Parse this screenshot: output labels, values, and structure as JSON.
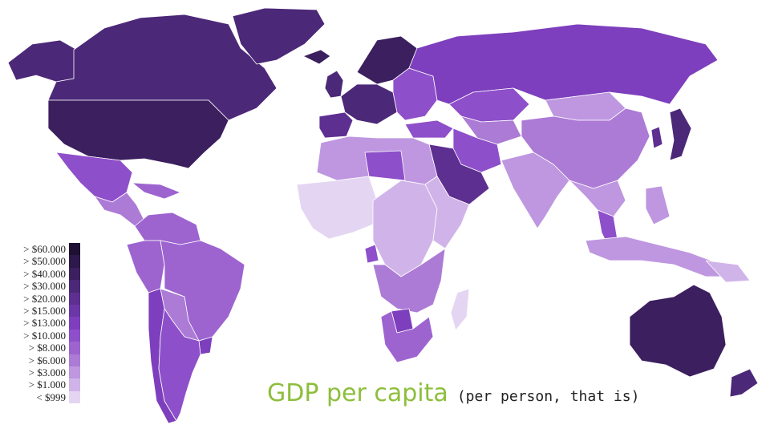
{
  "caption": {
    "main": "GDP per capita",
    "sub": "(per person, that is)"
  },
  "legend": {
    "items": [
      {
        "label": "> $60.000",
        "color": "#1e1032"
      },
      {
        "label": "> $50.000",
        "color": "#2c1849"
      },
      {
        "label": "> $40.000",
        "color": "#3b1f5e"
      },
      {
        "label": "> $30.000",
        "color": "#4c2878"
      },
      {
        "label": "> $20.000",
        "color": "#5d2f91"
      },
      {
        "label": "> $15.000",
        "color": "#6b36a6"
      },
      {
        "label": "> $13.000",
        "color": "#7d3fbd"
      },
      {
        "label": "> $10.000",
        "color": "#8e4fca"
      },
      {
        "label": "> $8.000",
        "color": "#9d64d0"
      },
      {
        "label": "> $6.000",
        "color": "#ac7bd6"
      },
      {
        "label": "> $3.000",
        "color": "#be97e0"
      },
      {
        "label": "> $1.000",
        "color": "#d0b4e9"
      },
      {
        "label": "< $999",
        "color": "#e4d6f2"
      }
    ]
  },
  "map": {
    "regions": [
      {
        "name": "canada",
        "color": "#4c2878"
      },
      {
        "name": "usa",
        "color": "#3b1f5e"
      },
      {
        "name": "alaska",
        "color": "#4c2878"
      },
      {
        "name": "greenland",
        "color": "#4c2878"
      },
      {
        "name": "mexico",
        "color": "#8e4fca"
      },
      {
        "name": "central-america",
        "color": "#ac7bd6"
      },
      {
        "name": "caribbean",
        "color": "#9d64d0"
      },
      {
        "name": "colombia-venezuela",
        "color": "#9d64d0"
      },
      {
        "name": "brazil",
        "color": "#9d64d0"
      },
      {
        "name": "peru-ecuador",
        "color": "#9d64d0"
      },
      {
        "name": "bolivia-paraguay",
        "color": "#ac7bd6"
      },
      {
        "name": "chile",
        "color": "#7d3fbd"
      },
      {
        "name": "argentina",
        "color": "#8e4fca"
      },
      {
        "name": "uruguay",
        "color": "#7d3fbd"
      },
      {
        "name": "western-europe",
        "color": "#4c2878"
      },
      {
        "name": "scandinavia",
        "color": "#3b1f5e"
      },
      {
        "name": "uk-ireland",
        "color": "#4c2878"
      },
      {
        "name": "iceland",
        "color": "#3b1f5e"
      },
      {
        "name": "iberia",
        "color": "#5d2f91"
      },
      {
        "name": "eastern-europe",
        "color": "#8e4fca"
      },
      {
        "name": "russia",
        "color": "#7d3fbd"
      },
      {
        "name": "turkey",
        "color": "#8e4fca"
      },
      {
        "name": "north-africa",
        "color": "#be97e0"
      },
      {
        "name": "libya",
        "color": "#8e4fca"
      },
      {
        "name": "west-africa",
        "color": "#e4d6f2"
      },
      {
        "name": "central-africa",
        "color": "#d0b4e9"
      },
      {
        "name": "east-africa",
        "color": "#d0b4e9"
      },
      {
        "name": "southern-africa",
        "color": "#ac7bd6"
      },
      {
        "name": "south-africa",
        "color": "#9d64d0"
      },
      {
        "name": "botswana",
        "color": "#7d3fbd"
      },
      {
        "name": "madagascar",
        "color": "#e4d6f2"
      },
      {
        "name": "gabon",
        "color": "#8e4fca"
      },
      {
        "name": "arabia",
        "color": "#5d2f91"
      },
      {
        "name": "iran",
        "color": "#8e4fca"
      },
      {
        "name": "central-asia",
        "color": "#ac7bd6"
      },
      {
        "name": "kazakhstan",
        "color": "#8e4fca"
      },
      {
        "name": "mongolia",
        "color": "#be97e0"
      },
      {
        "name": "china",
        "color": "#ac7bd6"
      },
      {
        "name": "india",
        "color": "#be97e0"
      },
      {
        "name": "southeast-asia",
        "color": "#be97e0"
      },
      {
        "name": "thailand-malaysia",
        "color": "#8e4fca"
      },
      {
        "name": "indonesia",
        "color": "#be97e0"
      },
      {
        "name": "philippines",
        "color": "#be97e0"
      },
      {
        "name": "japan",
        "color": "#4c2878"
      },
      {
        "name": "korea",
        "color": "#5d2f91"
      },
      {
        "name": "australia",
        "color": "#3b1f5e"
      },
      {
        "name": "new-zealand",
        "color": "#4c2878"
      },
      {
        "name": "papua-new-guinea",
        "color": "#d0b4e9"
      }
    ]
  }
}
